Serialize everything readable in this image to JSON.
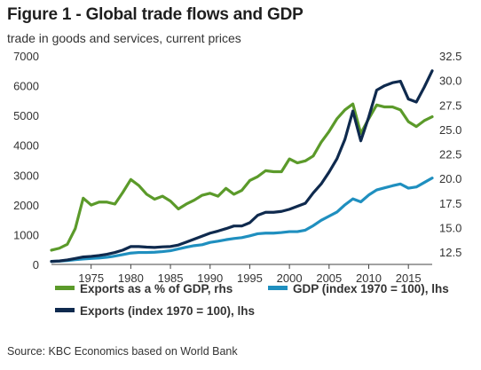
{
  "header": {
    "title": "Figure 1 - Global trade flows and GDP",
    "subtitle": "trade in goods and services, current prices"
  },
  "source": "Source: KBC Economics based on World Bank",
  "chart_data": {
    "type": "line",
    "title": "Figure 1 - Global trade flows and GDP",
    "subtitle": "trade in goods and services, current prices",
    "x": [
      1970,
      1971,
      1972,
      1973,
      1974,
      1975,
      1976,
      1977,
      1978,
      1979,
      1980,
      1981,
      1982,
      1983,
      1984,
      1985,
      1986,
      1987,
      1988,
      1989,
      1990,
      1991,
      1992,
      1993,
      1994,
      1995,
      1996,
      1997,
      1998,
      1999,
      2000,
      2001,
      2002,
      2003,
      2004,
      2005,
      2006,
      2007,
      2008,
      2009,
      2010,
      2011,
      2012,
      2013,
      2014,
      2015,
      2016,
      2017,
      2018
    ],
    "x_ticks": [
      1975,
      1980,
      1985,
      1990,
      1995,
      2000,
      2005,
      2010,
      2015
    ],
    "y_left": {
      "lim": [
        0,
        7000
      ],
      "ticks": [
        0,
        1000,
        2000,
        3000,
        4000,
        5000,
        6000,
        7000
      ]
    },
    "y_right": {
      "lim": [
        11.25,
        32.5
      ],
      "ticks": [
        12.5,
        15.0,
        17.5,
        20.0,
        22.5,
        25.0,
        27.5,
        30.0,
        32.5
      ]
    },
    "series": [
      {
        "name": "Exports as a % of GDP, rhs",
        "axis": "right",
        "color": "#5b9a2a",
        "values": [
          12.7,
          12.9,
          13.3,
          14.9,
          18.0,
          17.3,
          17.6,
          17.6,
          17.4,
          18.6,
          19.9,
          19.3,
          18.4,
          17.9,
          18.2,
          17.7,
          16.9,
          17.4,
          17.8,
          18.3,
          18.5,
          18.2,
          19.0,
          18.4,
          18.8,
          19.8,
          20.2,
          20.8,
          20.7,
          20.7,
          22.0,
          21.6,
          21.8,
          22.3,
          23.7,
          24.8,
          26.1,
          27.0,
          27.6,
          24.6,
          26.1,
          27.5,
          27.3,
          27.3,
          27.0,
          25.8,
          25.3,
          25.9,
          26.3
        ]
      },
      {
        "name": "GDP (index 1970 = 100), lhs",
        "axis": "left",
        "color": "#1f8fbf",
        "values": [
          100,
          110,
          130,
          160,
          180,
          200,
          215,
          240,
          280,
          330,
          380,
          400,
          400,
          410,
          430,
          460,
          520,
          580,
          630,
          660,
          740,
          780,
          830,
          870,
          900,
          960,
          1030,
          1050,
          1050,
          1070,
          1100,
          1100,
          1150,
          1300,
          1480,
          1620,
          1760,
          2000,
          2200,
          2100,
          2330,
          2500,
          2570,
          2640,
          2700,
          2560,
          2600,
          2750,
          2900
        ]
      },
      {
        "name": "Exports (index 1970 = 100), lhs",
        "axis": "left",
        "color": "#0f2a4e",
        "values": [
          100,
          115,
          150,
          200,
          250,
          270,
          300,
          340,
          400,
          480,
          600,
          600,
          580,
          570,
          590,
          600,
          650,
          750,
          850,
          950,
          1050,
          1120,
          1200,
          1290,
          1290,
          1400,
          1650,
          1750,
          1750,
          1780,
          1850,
          1950,
          2050,
          2400,
          2700,
          3100,
          3550,
          4200,
          5150,
          4150,
          4950,
          5850,
          6000,
          6100,
          6150,
          5550,
          5450,
          5950,
          6500
        ]
      }
    ],
    "legend": [
      "Exports as a % of GDP, rhs",
      "GDP (index 1970 = 100), lhs",
      "Exports (index 1970 = 100), lhs"
    ],
    "legend_position": "bottom",
    "grid": false
  }
}
